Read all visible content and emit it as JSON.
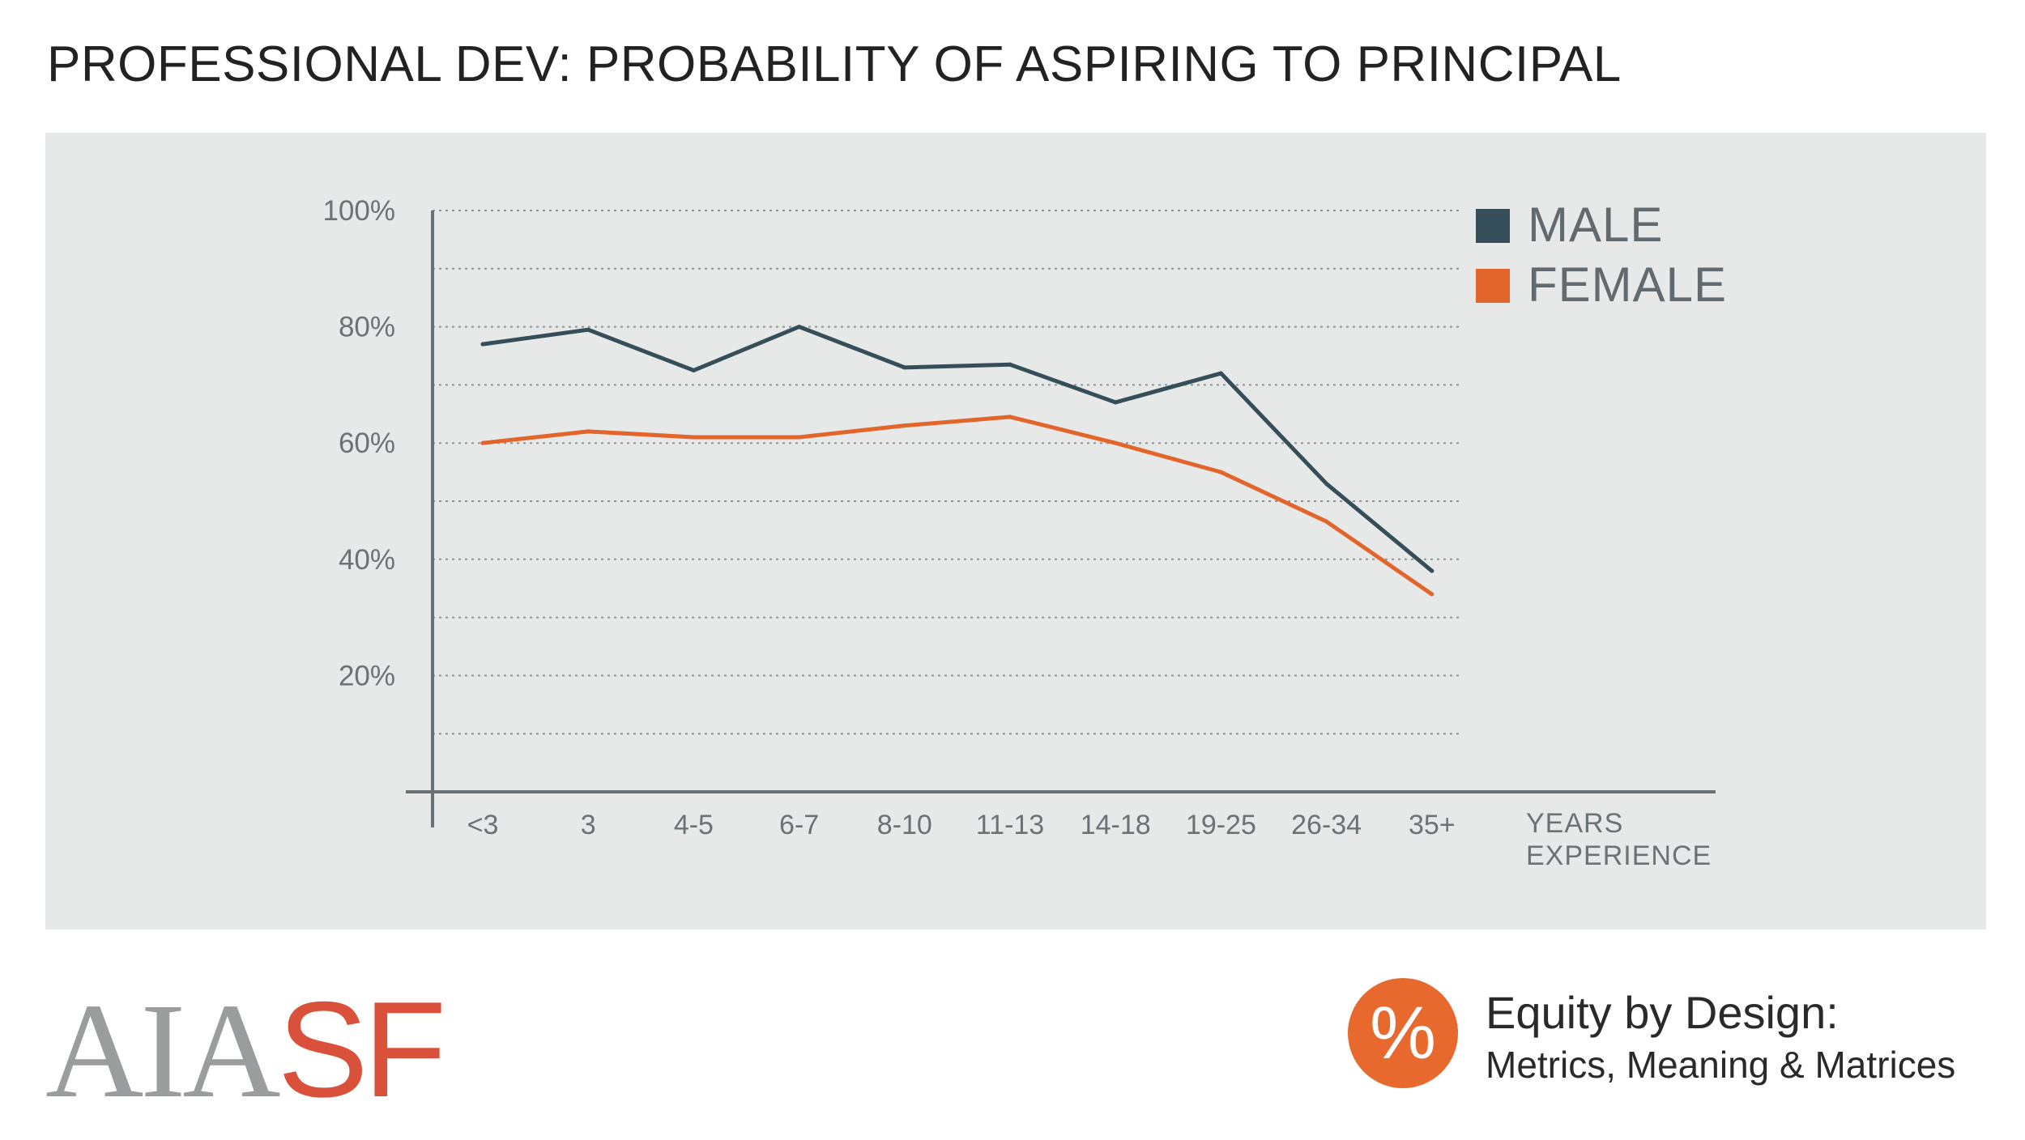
{
  "title": "PROFESSIONAL DEV: PROBABILITY OF ASPIRING TO PRINCIPAL",
  "logo": {
    "part1": "AIA",
    "part2": "SF"
  },
  "badge": {
    "symbol": "%",
    "title": "Equity by Design:",
    "subtitle": "Metrics, Meaning & Matrices"
  },
  "colors": {
    "male": "#364e5a",
    "female": "#e2652b",
    "panel": "#e7e9e9",
    "axis": "#6b7275",
    "logo_gray": "#9a9c9e",
    "logo_red": "#d9513a",
    "badge": "#e8692e"
  },
  "chart_data": {
    "type": "line",
    "title": "PROFESSIONAL DEV: PROBABILITY OF ASPIRING TO PRINCIPAL",
    "xlabel": "YEARS EXPERIENCE",
    "xlabel_lines": [
      "YEARS",
      "EXPERIENCE"
    ],
    "ylabel": "",
    "ylim": [
      0,
      100
    ],
    "yticks": [
      20,
      40,
      60,
      80,
      100
    ],
    "ytick_labels": [
      "20%",
      "40%",
      "60%",
      "80%",
      "100%"
    ],
    "grid_lines": [
      10,
      20,
      30,
      40,
      50,
      60,
      70,
      80,
      90,
      100
    ],
    "grid": true,
    "legend_position": "top-right",
    "categories": [
      "<3",
      "3",
      "4-5",
      "6-7",
      "8-10",
      "11-13",
      "14-18",
      "19-25",
      "26-34",
      "35+"
    ],
    "series": [
      {
        "name": "MALE",
        "color": "#364e5a",
        "values": [
          77,
          79.5,
          72.5,
          80,
          73,
          73.5,
          67,
          72,
          53,
          38
        ]
      },
      {
        "name": "FEMALE",
        "color": "#e2652b",
        "values": [
          60,
          62,
          61,
          61,
          63,
          64.5,
          60,
          55,
          46.5,
          34
        ]
      }
    ]
  }
}
